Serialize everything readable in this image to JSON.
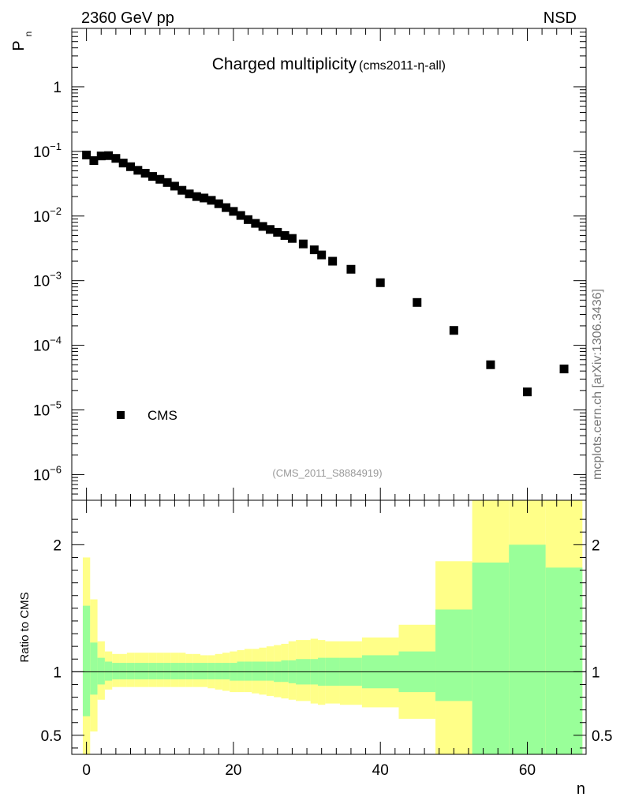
{
  "header": {
    "left_label": "2360 GeV pp",
    "right_label": "NSD"
  },
  "chart_data": [
    {
      "type": "scatter",
      "title": "Charged multiplicity",
      "subtitle": "(cms2011-η-all)",
      "ylabel_main": "P",
      "ylabel_sub": "n",
      "yscale": "log",
      "ylim": [
        4e-07,
        8
      ],
      "xlim": [
        -2,
        68
      ],
      "y_ticks": [
        {
          "value": 1,
          "label": "1"
        },
        {
          "value": 0.1,
          "mantissa": "10",
          "exponent": "−1"
        },
        {
          "value": 0.01,
          "mantissa": "10",
          "exponent": "−2"
        },
        {
          "value": 0.001,
          "mantissa": "10",
          "exponent": "−3"
        },
        {
          "value": 0.0001,
          "mantissa": "10",
          "exponent": "−4"
        },
        {
          "value": 1e-05,
          "mantissa": "10",
          "exponent": "−5"
        },
        {
          "value": 1e-06,
          "mantissa": "10",
          "exponent": "−6"
        }
      ],
      "series": [
        {
          "name": "CMS",
          "marker": "square",
          "color": "#000000",
          "x": [
            0,
            1,
            2,
            3,
            4,
            5,
            6,
            7,
            8,
            9,
            10,
            11,
            12,
            13,
            14,
            15,
            16,
            17,
            18,
            19,
            20,
            21,
            22,
            23,
            24,
            25,
            26,
            27,
            28,
            29.5,
            31,
            32,
            33.5,
            36,
            40,
            45,
            50,
            55,
            60,
            65
          ],
          "y": [
            0.088,
            0.072,
            0.085,
            0.086,
            0.078,
            0.066,
            0.058,
            0.051,
            0.046,
            0.041,
            0.037,
            0.033,
            0.029,
            0.025,
            0.022,
            0.02,
            0.019,
            0.0175,
            0.0155,
            0.0135,
            0.0118,
            0.0102,
            0.0088,
            0.0077,
            0.0069,
            0.0062,
            0.0056,
            0.005,
            0.0045,
            0.0037,
            0.003,
            0.0025,
            0.002,
            0.0015,
            0.00093,
            0.00046,
            0.00017,
            5e-05,
            1.9e-05,
            4.3e-05
          ]
        }
      ],
      "legend_position": "bottom-left",
      "annotation": "(CMS_2011_S8884919)"
    },
    {
      "type": "area",
      "ylabel": "Ratio to CMS",
      "xlabel": "n",
      "ylim": [
        0.35,
        2.35
      ],
      "xlim": [
        -2,
        68
      ],
      "x_ticks": [
        0,
        20,
        40,
        60
      ],
      "y_ticks": [
        0.5,
        1,
        2
      ],
      "reference_line": 1,
      "colors": {
        "stat": "#99ff99",
        "total": "#ffff88"
      },
      "bands": [
        {
          "x_lo": -0.5,
          "x_hi": 0.5,
          "stat_lo": 0.65,
          "stat_hi": 1.52,
          "tot_lo": 0.28,
          "tot_hi": 1.9
        },
        {
          "x_lo": 0.5,
          "x_hi": 1.5,
          "stat_lo": 0.82,
          "stat_hi": 1.23,
          "tot_lo": 0.53,
          "tot_hi": 1.57
        },
        {
          "x_lo": 1.5,
          "x_hi": 2.5,
          "stat_lo": 0.9,
          "stat_hi": 1.11,
          "tot_lo": 0.78,
          "tot_hi": 1.24
        },
        {
          "x_lo": 2.5,
          "x_hi": 3.5,
          "stat_lo": 0.93,
          "stat_hi": 1.08,
          "tot_lo": 0.86,
          "tot_hi": 1.16
        },
        {
          "x_lo": 3.5,
          "x_hi": 4.5,
          "stat_lo": 0.94,
          "stat_hi": 1.07,
          "tot_lo": 0.88,
          "tot_hi": 1.14
        },
        {
          "x_lo": 4.5,
          "x_hi": 5.5,
          "stat_lo": 0.94,
          "stat_hi": 1.07,
          "tot_lo": 0.88,
          "tot_hi": 1.14
        },
        {
          "x_lo": 5.5,
          "x_hi": 6.5,
          "stat_lo": 0.94,
          "stat_hi": 1.07,
          "tot_lo": 0.88,
          "tot_hi": 1.15
        },
        {
          "x_lo": 6.5,
          "x_hi": 7.5,
          "stat_lo": 0.94,
          "stat_hi": 1.07,
          "tot_lo": 0.88,
          "tot_hi": 1.15
        },
        {
          "x_lo": 7.5,
          "x_hi": 8.5,
          "stat_lo": 0.94,
          "stat_hi": 1.07,
          "tot_lo": 0.88,
          "tot_hi": 1.15
        },
        {
          "x_lo": 8.5,
          "x_hi": 9.5,
          "stat_lo": 0.94,
          "stat_hi": 1.07,
          "tot_lo": 0.88,
          "tot_hi": 1.15
        },
        {
          "x_lo": 9.5,
          "x_hi": 10.5,
          "stat_lo": 0.94,
          "stat_hi": 1.07,
          "tot_lo": 0.88,
          "tot_hi": 1.15
        },
        {
          "x_lo": 10.5,
          "x_hi": 11.5,
          "stat_lo": 0.94,
          "stat_hi": 1.07,
          "tot_lo": 0.88,
          "tot_hi": 1.15
        },
        {
          "x_lo": 11.5,
          "x_hi": 12.5,
          "stat_lo": 0.94,
          "stat_hi": 1.07,
          "tot_lo": 0.88,
          "tot_hi": 1.15
        },
        {
          "x_lo": 12.5,
          "x_hi": 13.5,
          "stat_lo": 0.94,
          "stat_hi": 1.07,
          "tot_lo": 0.88,
          "tot_hi": 1.15
        },
        {
          "x_lo": 13.5,
          "x_hi": 14.5,
          "stat_lo": 0.94,
          "stat_hi": 1.07,
          "tot_lo": 0.88,
          "tot_hi": 1.14
        },
        {
          "x_lo": 14.5,
          "x_hi": 15.5,
          "stat_lo": 0.94,
          "stat_hi": 1.07,
          "tot_lo": 0.88,
          "tot_hi": 1.14
        },
        {
          "x_lo": 15.5,
          "x_hi": 16.5,
          "stat_lo": 0.94,
          "stat_hi": 1.07,
          "tot_lo": 0.88,
          "tot_hi": 1.13
        },
        {
          "x_lo": 16.5,
          "x_hi": 17.5,
          "stat_lo": 0.94,
          "stat_hi": 1.07,
          "tot_lo": 0.87,
          "tot_hi": 1.13
        },
        {
          "x_lo": 17.5,
          "x_hi": 18.5,
          "stat_lo": 0.94,
          "stat_hi": 1.07,
          "tot_lo": 0.86,
          "tot_hi": 1.14
        },
        {
          "x_lo": 18.5,
          "x_hi": 19.5,
          "stat_lo": 0.94,
          "stat_hi": 1.07,
          "tot_lo": 0.85,
          "tot_hi": 1.15
        },
        {
          "x_lo": 19.5,
          "x_hi": 20.5,
          "stat_lo": 0.93,
          "stat_hi": 1.07,
          "tot_lo": 0.84,
          "tot_hi": 1.16
        },
        {
          "x_lo": 20.5,
          "x_hi": 21.5,
          "stat_lo": 0.93,
          "stat_hi": 1.08,
          "tot_lo": 0.84,
          "tot_hi": 1.17
        },
        {
          "x_lo": 21.5,
          "x_hi": 22.5,
          "stat_lo": 0.93,
          "stat_hi": 1.08,
          "tot_lo": 0.84,
          "tot_hi": 1.18
        },
        {
          "x_lo": 22.5,
          "x_hi": 23.5,
          "stat_lo": 0.93,
          "stat_hi": 1.08,
          "tot_lo": 0.83,
          "tot_hi": 1.18
        },
        {
          "x_lo": 23.5,
          "x_hi": 24.5,
          "stat_lo": 0.93,
          "stat_hi": 1.08,
          "tot_lo": 0.82,
          "tot_hi": 1.19
        },
        {
          "x_lo": 24.5,
          "x_hi": 25.5,
          "stat_lo": 0.93,
          "stat_hi": 1.08,
          "tot_lo": 0.81,
          "tot_hi": 1.2
        },
        {
          "x_lo": 25.5,
          "x_hi": 26.5,
          "stat_lo": 0.92,
          "stat_hi": 1.08,
          "tot_lo": 0.8,
          "tot_hi": 1.21
        },
        {
          "x_lo": 26.5,
          "x_hi": 27.5,
          "stat_lo": 0.92,
          "stat_hi": 1.09,
          "tot_lo": 0.79,
          "tot_hi": 1.22
        },
        {
          "x_lo": 27.5,
          "x_hi": 28.5,
          "stat_lo": 0.91,
          "stat_hi": 1.09,
          "tot_lo": 0.78,
          "tot_hi": 1.24
        },
        {
          "x_lo": 28.5,
          "x_hi": 30.5,
          "stat_lo": 0.9,
          "stat_hi": 1.1,
          "tot_lo": 0.77,
          "tot_hi": 1.25
        },
        {
          "x_lo": 30.5,
          "x_hi": 31.5,
          "stat_lo": 0.9,
          "stat_hi": 1.1,
          "tot_lo": 0.75,
          "tot_hi": 1.26
        },
        {
          "x_lo": 31.5,
          "x_hi": 32.5,
          "stat_lo": 0.89,
          "stat_hi": 1.11,
          "tot_lo": 0.74,
          "tot_hi": 1.25
        },
        {
          "x_lo": 32.5,
          "x_hi": 34.5,
          "stat_lo": 0.89,
          "stat_hi": 1.11,
          "tot_lo": 0.75,
          "tot_hi": 1.24
        },
        {
          "x_lo": 34.5,
          "x_hi": 37.5,
          "stat_lo": 0.89,
          "stat_hi": 1.11,
          "tot_lo": 0.74,
          "tot_hi": 1.24
        },
        {
          "x_lo": 37.5,
          "x_hi": 42.5,
          "stat_lo": 0.87,
          "stat_hi": 1.13,
          "tot_lo": 0.72,
          "tot_hi": 1.27
        },
        {
          "x_lo": 42.5,
          "x_hi": 47.5,
          "stat_lo": 0.84,
          "stat_hi": 1.16,
          "tot_lo": 0.63,
          "tot_hi": 1.37
        },
        {
          "x_lo": 47.5,
          "x_hi": 52.5,
          "stat_lo": 0.77,
          "stat_hi": 1.49,
          "tot_lo": 0.3,
          "tot_hi": 1.87
        },
        {
          "x_lo": 52.5,
          "x_hi": 57.5,
          "stat_lo": 0.3,
          "stat_hi": 1.86,
          "tot_lo": 0.3,
          "tot_hi": 2.4
        },
        {
          "x_lo": 57.5,
          "x_hi": 62.5,
          "stat_lo": 0.3,
          "stat_hi": 2.0,
          "tot_lo": 0.3,
          "tot_hi": 2.4
        },
        {
          "x_lo": 62.5,
          "x_hi": 67.5,
          "stat_lo": 0.3,
          "stat_hi": 1.82,
          "tot_lo": 0.3,
          "tot_hi": 2.4
        }
      ]
    }
  ],
  "watermark": "mcplots.cern.ch [arXiv:1306.3436]"
}
